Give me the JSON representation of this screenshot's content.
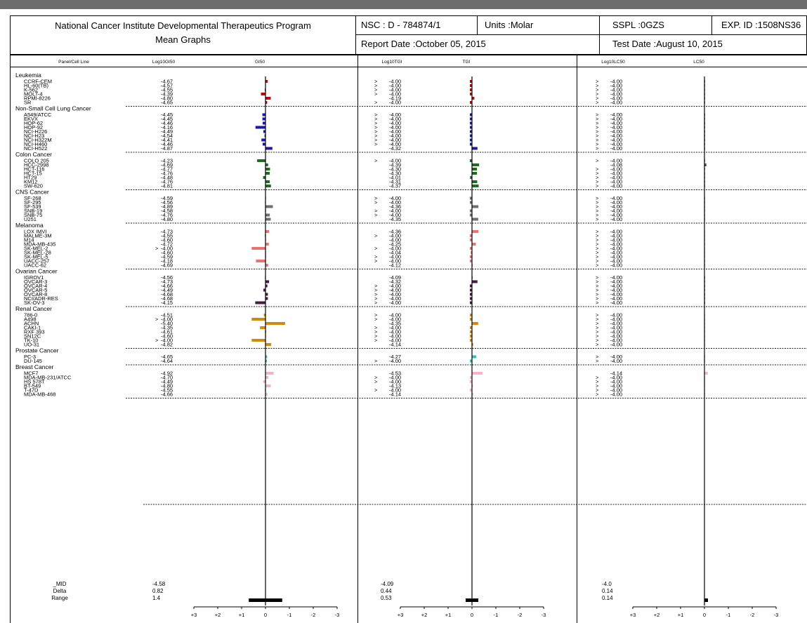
{
  "header": {
    "institute": "National Cancer Institute Developmental Therapeutics Program",
    "subtitle": "Mean Graphs",
    "nsc": "NSC : D - 784874/1",
    "units": "Units :Molar",
    "sspl": "SSPL :0GZS",
    "exp_id": "EXP. ID :1508NS36",
    "report_date": "Report Date :October 05, 2015",
    "test_date": "Test Date :August 10, 2015"
  },
  "chart_data": {
    "type": "bar",
    "column_headers": {
      "cell_line": "Panel/Cell Line",
      "gi50_log": "Log10GI50",
      "gi50": "GI50",
      "tgi_log": "Log10TGI",
      "tgi": "TGI",
      "lc50_log": "Log10LC50",
      "lc50": "LC50"
    },
    "axis_ticks": [
      "+3",
      "+2",
      "+1",
      "0",
      "-1",
      "-2",
      "-3"
    ],
    "panels": [
      {
        "name": "Leukemia",
        "color": "#cc0000",
        "rows": [
          {
            "cell": "CCRF-CEM",
            "gi50": [
              "",
              "-4.67"
            ],
            "tgi": [
              ">",
              "-4.00"
            ],
            "lc50": [
              ">",
              "-4.00"
            ]
          },
          {
            "cell": "HL-60(TB)",
            "gi50": [
              "",
              "-4.57"
            ],
            "tgi": [
              ">",
              "-4.00"
            ],
            "lc50": [
              ">",
              "-4.00"
            ]
          },
          {
            "cell": "K-562",
            "gi50": [
              "",
              "-4.55"
            ],
            "tgi": [
              ">",
              "-4.00"
            ],
            "lc50": [
              ">",
              "-4.00"
            ]
          },
          {
            "cell": "MOLT-4",
            "gi50": [
              "",
              "-4.39"
            ],
            "tgi": [
              ">",
              "-4.00"
            ],
            "lc50": [
              ">",
              "-4.00"
            ]
          },
          {
            "cell": "RPMI-8226",
            "gi50": [
              "",
              "-4.80"
            ],
            "tgi": [
              "",
              "-4.19"
            ],
            "lc50": [
              ">",
              "-4.00"
            ]
          },
          {
            "cell": "SR",
            "gi50": [
              "",
              "-4.65"
            ],
            "tgi": [
              ">",
              "-4.00"
            ],
            "lc50": [
              ">",
              "-4.00"
            ]
          }
        ]
      },
      {
        "name": "Non-Small Cell Lung Cancer",
        "color": "#1a1aa8",
        "rows": [
          {
            "cell": "A549/ATCC",
            "gi50": [
              "",
              "-4.45"
            ],
            "tgi": [
              ">",
              "-4.00"
            ],
            "lc50": [
              ">",
              "-4.00"
            ]
          },
          {
            "cell": "EKVX",
            "gi50": [
              "",
              "-4.45"
            ],
            "tgi": [
              ">",
              "-4.00"
            ],
            "lc50": [
              ">",
              "-4.00"
            ]
          },
          {
            "cell": "HOP-62",
            "gi50": [
              "",
              "-4.46"
            ],
            "tgi": [
              ">",
              "-4.00"
            ],
            "lc50": [
              ">",
              "-4.00"
            ]
          },
          {
            "cell": "HOP-92",
            "gi50": [
              "",
              "-4.16"
            ],
            "tgi": [
              ">",
              "-4.00"
            ],
            "lc50": [
              ">",
              "-4.00"
            ]
          },
          {
            "cell": "NCI-H226",
            "gi50": [
              "",
              "-4.49"
            ],
            "tgi": [
              ">",
              "-4.00"
            ],
            "lc50": [
              ">",
              "-4.00"
            ]
          },
          {
            "cell": "NCI-H23",
            "gi50": [
              "",
              "-4.54"
            ],
            "tgi": [
              ">",
              "-4.00"
            ],
            "lc50": [
              ">",
              "-4.00"
            ]
          },
          {
            "cell": "NCI-H322M",
            "gi50": [
              "",
              "-4.41"
            ],
            "tgi": [
              ">",
              "-4.00"
            ],
            "lc50": [
              ">",
              "-4.00"
            ]
          },
          {
            "cell": "NCI-H460",
            "gi50": [
              "",
              "-4.46"
            ],
            "tgi": [
              ">",
              "-4.00"
            ],
            "lc50": [
              ">",
              "-4.00"
            ]
          },
          {
            "cell": "NCI-H522",
            "gi50": [
              "",
              "-4.87"
            ],
            "tgi": [
              "",
              "-4.32"
            ],
            "lc50": [
              ">",
              "-4.00"
            ]
          }
        ]
      },
      {
        "name": "Colon Cancer",
        "color": "#1f6b1f",
        "rows": [
          {
            "cell": "COLO 205",
            "gi50": [
              "",
              "-4.23"
            ],
            "tgi": [
              ">",
              "-4.00"
            ],
            "lc50": [
              ">",
              "-4.00"
            ]
          },
          {
            "cell": "HCC-2998",
            "gi50": [
              "",
              "-4.69"
            ],
            "tgi": [
              "",
              "-4.39"
            ],
            "lc50": [
              "",
              "-4.08"
            ]
          },
          {
            "cell": "HCT-116",
            "gi50": [
              "",
              "-4.77"
            ],
            "tgi": [
              "",
              "-4.30"
            ],
            "lc50": [
              ">",
              "-4.00"
            ]
          },
          {
            "cell": "HCT-15",
            "gi50": [
              "",
              "-4.76"
            ],
            "tgi": [
              "",
              "-4.30"
            ],
            "lc50": [
              ">",
              "-4.00"
            ]
          },
          {
            "cell": "HT29",
            "gi50": [
              "",
              "-4.48"
            ],
            "tgi": [
              "",
              "-4.01"
            ],
            "lc50": [
              ">",
              "-4.00"
            ]
          },
          {
            "cell": "KM12",
            "gi50": [
              "",
              "-4.76"
            ],
            "tgi": [
              "",
              "-4.31"
            ],
            "lc50": [
              ">",
              "-4.00"
            ]
          },
          {
            "cell": "SW-620",
            "gi50": [
              "",
              "-4.81"
            ],
            "tgi": [
              "",
              "-4.37"
            ],
            "lc50": [
              ">",
              "-4.00"
            ]
          }
        ]
      },
      {
        "name": "CNS Cancer",
        "color": "#6e6e6e",
        "rows": [
          {
            "cell": "SF-268",
            "gi50": [
              "",
              "-4.59"
            ],
            "tgi": [
              ">",
              "-4.00"
            ],
            "lc50": [
              ">",
              "-4.00"
            ]
          },
          {
            "cell": "SF-295",
            "gi50": [
              "",
              "-4.56"
            ],
            "tgi": [
              ">",
              "-4.00"
            ],
            "lc50": [
              ">",
              "-4.00"
            ]
          },
          {
            "cell": "SF-539",
            "gi50": [
              "",
              "-4.89"
            ],
            "tgi": [
              "",
              "-4.36"
            ],
            "lc50": [
              ">",
              "-4.00"
            ]
          },
          {
            "cell": "SNB-19",
            "gi50": [
              "",
              "-4.58"
            ],
            "tgi": [
              ">",
              "-4.00"
            ],
            "lc50": [
              ">",
              "-4.00"
            ]
          },
          {
            "cell": "SNB-75",
            "gi50": [
              "",
              "-4.76"
            ],
            "tgi": [
              ">",
              "-4.00"
            ],
            "lc50": [
              ">",
              "-4.00"
            ]
          },
          {
            "cell": "U251",
            "gi50": [
              "",
              "-4.80"
            ],
            "tgi": [
              "",
              "-4.35"
            ],
            "lc50": [
              ">",
              "-4.00"
            ]
          }
        ]
      },
      {
        "name": "Melanoma",
        "color": "#f07070",
        "rows": [
          {
            "cell": "LOX IMVI",
            "gi50": [
              "",
              "-4.73"
            ],
            "tgi": [
              "",
              "-4.36"
            ],
            "lc50": [
              ">",
              "-4.00"
            ]
          },
          {
            "cell": "MALME-3M",
            "gi50": [
              "",
              "-4.55"
            ],
            "tgi": [
              ">",
              "-4.00"
            ],
            "lc50": [
              ">",
              "-4.00"
            ]
          },
          {
            "cell": "M14",
            "gi50": [
              "",
              "-4.60"
            ],
            "tgi": [
              "",
              "-4.00"
            ],
            "lc50": [
              ">",
              "-4.00"
            ]
          },
          {
            "cell": "MDA-MB-435",
            "gi50": [
              "",
              "-4.72"
            ],
            "tgi": [
              "",
              "-4.25"
            ],
            "lc50": [
              ">",
              "-4.00"
            ]
          },
          {
            "cell": "SK-MEL-2",
            "gi50": [
              ">",
              "-4.00"
            ],
            "tgi": [
              ">",
              "-4.00"
            ],
            "lc50": [
              ">",
              "-4.00"
            ]
          },
          {
            "cell": "SK-MEL-28",
            "gi50": [
              "",
              "-4.60"
            ],
            "tgi": [
              "",
              "-4.04"
            ],
            "lc50": [
              ">",
              "-4.00"
            ]
          },
          {
            "cell": "SK-MEL-5",
            "gi50": [
              "",
              "-4.59"
            ],
            "tgi": [
              ">",
              "-4.00"
            ],
            "lc50": [
              ">",
              "-4.00"
            ]
          },
          {
            "cell": "UACC-257",
            "gi50": [
              "",
              "-4.18"
            ],
            "tgi": [
              ">",
              "-4.00"
            ],
            "lc50": [
              ">",
              "-4.00"
            ]
          },
          {
            "cell": "UACC-62",
            "gi50": [
              "",
              "-4.69"
            ],
            "tgi": [
              "",
              "-4.12"
            ],
            "lc50": [
              ">",
              "-4.00"
            ]
          }
        ]
      },
      {
        "name": "Ovarian Cancer",
        "color": "#4a1848",
        "rows": [
          {
            "cell": "IGROV1",
            "gi50": [
              "",
              "-4.56"
            ],
            "tgi": [
              "",
              "-4.09"
            ],
            "lc50": [
              ">",
              "-4.00"
            ]
          },
          {
            "cell": "OVCAR-3",
            "gi50": [
              "",
              "-4.73"
            ],
            "tgi": [
              "",
              "-4.32"
            ],
            "lc50": [
              ">",
              "-4.00"
            ]
          },
          {
            "cell": "OVCAR-4",
            "gi50": [
              "",
              "-4.66"
            ],
            "tgi": [
              ">",
              "-4.00"
            ],
            "lc50": [
              ">",
              "-4.00"
            ]
          },
          {
            "cell": "OVCAR-5",
            "gi50": [
              "",
              "-4.49"
            ],
            "tgi": [
              ">",
              "-4.00"
            ],
            "lc50": [
              ">",
              "-4.00"
            ]
          },
          {
            "cell": "OVCAR-8",
            "gi50": [
              "",
              "-4.68"
            ],
            "tgi": [
              ">",
              "-4.00"
            ],
            "lc50": [
              ">",
              "-4.00"
            ]
          },
          {
            "cell": "NCI/ADR-RES",
            "gi50": [
              "",
              "-4.68"
            ],
            "tgi": [
              ">",
              "-4.00"
            ],
            "lc50": [
              ">",
              "-4.00"
            ]
          },
          {
            "cell": "SK-OV-3",
            "gi50": [
              "",
              "-4.15"
            ],
            "tgi": [
              ">",
              "-4.00"
            ],
            "lc50": [
              ">",
              "-4.00"
            ]
          }
        ]
      },
      {
        "name": "Renal Cancer",
        "color": "#d08a10",
        "rows": [
          {
            "cell": "786-0",
            "gi50": [
              "",
              "-4.51"
            ],
            "tgi": [
              ">",
              "-4.00"
            ],
            "lc50": [
              ">",
              "-4.00"
            ]
          },
          {
            "cell": "A498",
            "gi50": [
              ">",
              "-4.00"
            ],
            "tgi": [
              ">",
              "-4.00"
            ],
            "lc50": [
              ">",
              "-4.00"
            ]
          },
          {
            "cell": "ACHN",
            "gi50": [
              "",
              "-5.40"
            ],
            "tgi": [
              "",
              "-4.35"
            ],
            "lc50": [
              ">",
              "-4.00"
            ]
          },
          {
            "cell": "CAKI-1",
            "gi50": [
              "",
              "-4.35"
            ],
            "tgi": [
              ">",
              "-4.00"
            ],
            "lc50": [
              ">",
              "-4.00"
            ]
          },
          {
            "cell": "RXF 393",
            "gi50": [
              "",
              "-4.61"
            ],
            "tgi": [
              ">",
              "-4.00"
            ],
            "lc50": [
              ">",
              "-4.00"
            ]
          },
          {
            "cell": "SN12C",
            "gi50": [
              "",
              "-4.60"
            ],
            "tgi": [
              ">",
              "-4.00"
            ],
            "lc50": [
              ">",
              "-4.00"
            ]
          },
          {
            "cell": "TK-10",
            "gi50": [
              ">",
              "-4.00"
            ],
            "tgi": [
              ">",
              "-4.00"
            ],
            "lc50": [
              ">",
              "-4.00"
            ]
          },
          {
            "cell": "UO-31",
            "gi50": [
              "",
              "-4.82"
            ],
            "tgi": [
              "",
              "-4.14"
            ],
            "lc50": [
              ">",
              "-4.00"
            ]
          }
        ]
      },
      {
        "name": "Prostate Cancer",
        "color": "#22c8b8",
        "rows": [
          {
            "cell": "PC-3",
            "gi50": [
              "",
              "-4.65"
            ],
            "tgi": [
              "",
              "-4.27"
            ],
            "lc50": [
              ">",
              "-4.00"
            ]
          },
          {
            "cell": "DU-145",
            "gi50": [
              "",
              "-4.64"
            ],
            "tgi": [
              ">",
              "-4.00"
            ],
            "lc50": [
              ">",
              "-4.00"
            ]
          }
        ]
      },
      {
        "name": "Breast Cancer",
        "color": "#f4b4c4",
        "rows": [
          {
            "cell": "MCF7",
            "gi50": [
              "",
              "-4.92"
            ],
            "tgi": [
              "",
              "-4.53"
            ],
            "lc50": [
              "",
              "-4.14"
            ]
          },
          {
            "cell": "MDA-MB-231/ATCC",
            "gi50": [
              "",
              "-4.70"
            ],
            "tgi": [
              ">",
              "-4.00"
            ],
            "lc50": [
              ">",
              "-4.00"
            ]
          },
          {
            "cell": "HS 578T",
            "gi50": [
              "",
              "-4.49"
            ],
            "tgi": [
              ">",
              "-4.00"
            ],
            "lc50": [
              ">",
              "-4.00"
            ]
          },
          {
            "cell": "BT-549",
            "gi50": [
              "",
              "-4.80"
            ],
            "tgi": [
              "",
              "-4.13"
            ],
            "lc50": [
              ">",
              "-4.00"
            ]
          },
          {
            "cell": "T-47D",
            "gi50": [
              "",
              "-4.55"
            ],
            "tgi": [
              ">",
              "-4.00"
            ],
            "lc50": [
              ">",
              "-4.00"
            ]
          },
          {
            "cell": "MDA-MB-468",
            "gi50": [
              "",
              "-4.66"
            ],
            "tgi": [
              "",
              "-4.14"
            ],
            "lc50": [
              ">",
              "-4.00"
            ]
          }
        ]
      }
    ],
    "summary": {
      "labels": [
        "_MID",
        "Delta",
        "Range"
      ],
      "gi50": [
        "-4.58",
        "0.82",
        "1.4"
      ],
      "tgi": [
        "-4.09",
        "0.44",
        "0.53"
      ],
      "lc50": [
        "-4.0",
        "0.14",
        "0.14"
      ]
    }
  }
}
